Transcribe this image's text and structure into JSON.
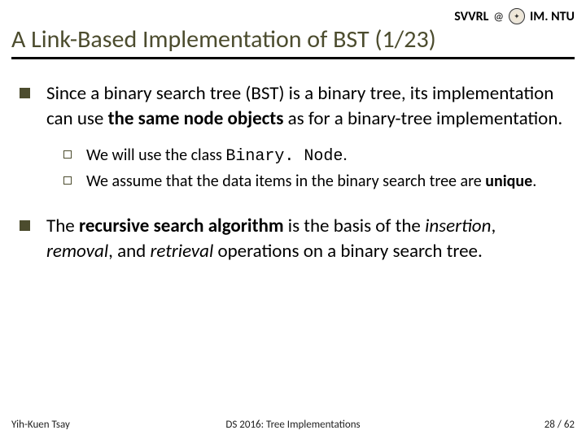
{
  "header": {
    "org": "SVVRL",
    "inst": "IM. NTU"
  },
  "title": "A Link-Based Implementation of BST (1/23)",
  "bullets": [
    {
      "pre": "Since a binary search tree (BST) is a binary tree, its implementation can use ",
      "bold1": "the same node objects",
      "post": " as for a binary-tree implementation.",
      "sub": [
        {
          "pre": "We will use the class ",
          "mono": "Binary. Node",
          "post": "."
        },
        {
          "pre": "We assume that the data items in the binary search tree are ",
          "bold": "unique",
          "post": "."
        }
      ]
    },
    {
      "pre": "The ",
      "bold1": "recursive search algorithm",
      "mid": " is the basis of the ",
      "it1": "insertion",
      "sep1": ", ",
      "it2": "removal",
      "sep2": ", and ",
      "it3": "retrieval",
      "post": " operations on a binary search tree."
    }
  ],
  "footer": {
    "left": "Yih-Kuen Tsay",
    "center": "DS 2016: Tree Implementations",
    "page_cur": "28",
    "page_sep": " / ",
    "page_total": "62"
  }
}
